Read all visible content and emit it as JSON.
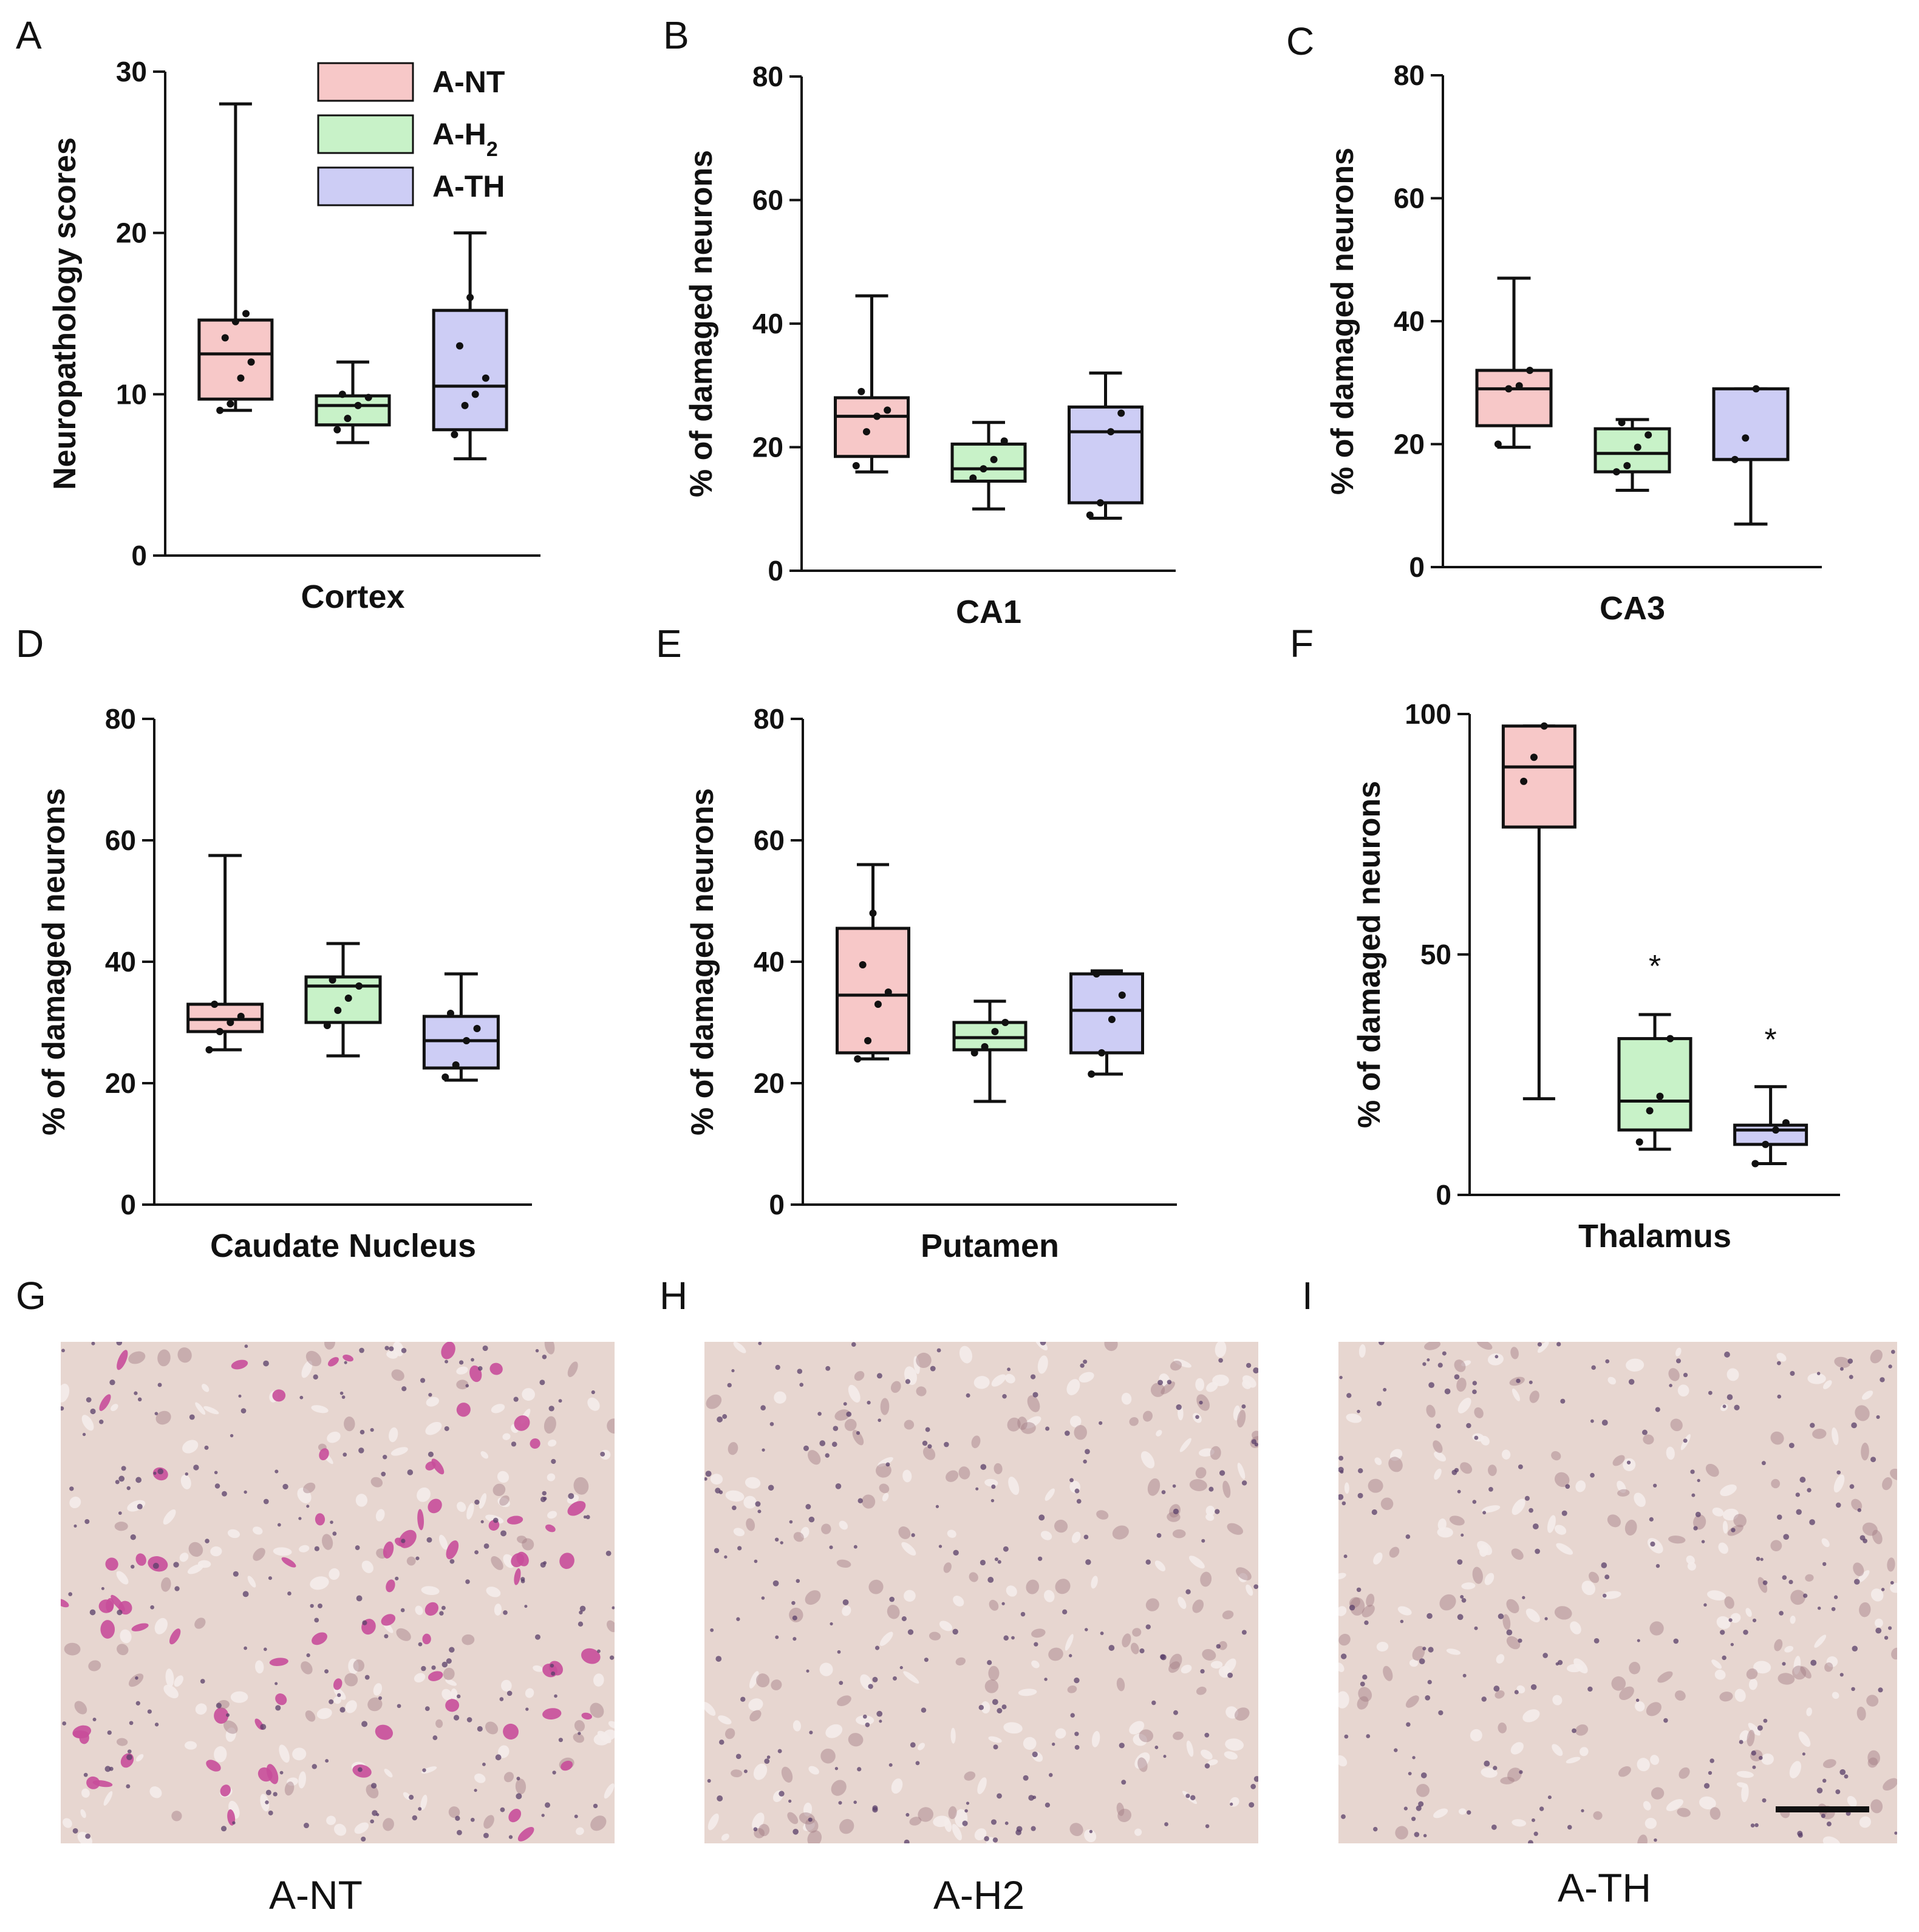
{
  "chart_data": [
    {
      "type": "box",
      "panel": "A",
      "region": "Cortex",
      "ylabel": "Neuropathology scores",
      "ylim": [
        0,
        30
      ],
      "yticks": [
        "0",
        "10",
        "20",
        "30"
      ],
      "groups": [
        {
          "name": "A-NT",
          "color": "#f7c8c8",
          "min": 9,
          "q1": 9.7,
          "median": 12.5,
          "q3": 14.6,
          "max": 28,
          "points": [
            9,
            9.4,
            11,
            12,
            13.5,
            14.5,
            15
          ]
        },
        {
          "name": "A-H2",
          "color": "#c8f2c8",
          "min": 7,
          "q1": 8.1,
          "median": 9.3,
          "q3": 9.9,
          "max": 12,
          "points": [
            7.8,
            8.5,
            9.3,
            9.8,
            10
          ]
        },
        {
          "name": "A-TH",
          "color": "#cdcdf5",
          "min": 6,
          "q1": 7.8,
          "median": 10.5,
          "q3": 15.2,
          "max": 20,
          "points": [
            7.5,
            9.3,
            10,
            11,
            13,
            16
          ]
        }
      ]
    },
    {
      "type": "box",
      "panel": "B",
      "region": "CA1",
      "ylabel": "% of damaged neurons",
      "ylim": [
        0,
        80
      ],
      "yticks": [
        "0",
        "20",
        "40",
        "60",
        "80"
      ],
      "groups": [
        {
          "name": "A-NT",
          "color": "#f7c8c8",
          "min": 16,
          "q1": 18.5,
          "median": 25,
          "q3": 28,
          "max": 44.5,
          "points": [
            17,
            22.5,
            25,
            26,
            29
          ]
        },
        {
          "name": "A-H2",
          "color": "#c8f2c8",
          "min": 10,
          "q1": 14.5,
          "median": 16.5,
          "q3": 20.5,
          "max": 24,
          "points": [
            15,
            16.5,
            18,
            21
          ]
        },
        {
          "name": "A-TH",
          "color": "#cdcdf5",
          "min": 8.5,
          "q1": 11,
          "median": 22.5,
          "q3": 26.5,
          "max": 32,
          "points": [
            9,
            11,
            22.5,
            25.5
          ]
        }
      ]
    },
    {
      "type": "box",
      "panel": "C",
      "region": "CA3",
      "ylabel": "% of damaged neurons",
      "ylim": [
        0,
        80
      ],
      "yticks": [
        "0",
        "20",
        "40",
        "60",
        "80"
      ],
      "groups": [
        {
          "name": "A-NT",
          "color": "#f7c8c8",
          "min": 19.5,
          "q1": 23,
          "median": 29,
          "q3": 32,
          "max": 47,
          "points": [
            20,
            29,
            29.5,
            32
          ]
        },
        {
          "name": "A-H2",
          "color": "#c8f2c8",
          "min": 12.5,
          "q1": 15.5,
          "median": 18.5,
          "q3": 22.5,
          "max": 24,
          "points": [
            15.5,
            16.5,
            19.5,
            21.5,
            23.5
          ]
        },
        {
          "name": "A-TH",
          "color": "#cdcdf5",
          "min": 7,
          "q1": 17.5,
          "median": 17.5,
          "q3": 29,
          "max": 29,
          "points": [
            17.5,
            21,
            29
          ]
        }
      ]
    },
    {
      "type": "box",
      "panel": "D",
      "region": "Caudate Nucleus",
      "ylabel": "% of damaged neurons",
      "ylim": [
        0,
        80
      ],
      "yticks": [
        "0",
        "20",
        "40",
        "60",
        "80"
      ],
      "groups": [
        {
          "name": "A-NT",
          "color": "#f7c8c8",
          "min": 25.5,
          "q1": 28.5,
          "median": 30.5,
          "q3": 33,
          "max": 57.5,
          "points": [
            25.5,
            28.5,
            30,
            31,
            33
          ]
        },
        {
          "name": "A-H2",
          "color": "#c8f2c8",
          "min": 24.5,
          "q1": 30,
          "median": 36,
          "q3": 37.5,
          "max": 43,
          "points": [
            29.5,
            32,
            34,
            36,
            37
          ]
        },
        {
          "name": "A-TH",
          "color": "#cdcdf5",
          "min": 20.5,
          "q1": 22.5,
          "median": 27,
          "q3": 31,
          "max": 38,
          "points": [
            21,
            23,
            27,
            29,
            31.5
          ]
        }
      ]
    },
    {
      "type": "box",
      "panel": "E",
      "region": "Putamen",
      "ylabel": "% of damaged neurons",
      "ylim": [
        0,
        80
      ],
      "yticks": [
        "0",
        "20",
        "40",
        "60",
        "80"
      ],
      "groups": [
        {
          "name": "A-NT",
          "color": "#f7c8c8",
          "min": 24,
          "q1": 25,
          "median": 34.5,
          "q3": 45.5,
          "max": 56,
          "points": [
            24,
            27,
            33,
            35,
            39.5,
            48
          ]
        },
        {
          "name": "A-H2",
          "color": "#c8f2c8",
          "min": 17,
          "q1": 25.5,
          "median": 27.5,
          "q3": 30,
          "max": 33.5,
          "points": [
            25,
            26,
            28.5,
            30
          ]
        },
        {
          "name": "A-TH",
          "color": "#cdcdf5",
          "min": 21.5,
          "q1": 25,
          "median": 32,
          "q3": 38,
          "max": 38.5,
          "points": [
            21.5,
            25,
            30.5,
            34.5,
            38
          ]
        }
      ]
    },
    {
      "type": "box",
      "panel": "F",
      "region": "Thalamus",
      "ylabel": "% of damaged neurons",
      "ylim": [
        0,
        100
      ],
      "yticks": [
        "0",
        "50",
        "100"
      ],
      "groups": [
        {
          "name": "A-NT",
          "color": "#f7c8c8",
          "min": 20,
          "q1": 76.5,
          "median": 89,
          "q3": 97.5,
          "max": 97.5,
          "points": [
            86,
            91,
            97.5
          ]
        },
        {
          "name": "A-H2",
          "color": "#c8f2c8",
          "min": 9.5,
          "q1": 13.5,
          "median": 19.5,
          "q3": 32.5,
          "max": 37.5,
          "points": [
            11,
            17.5,
            20.5,
            32.5
          ],
          "sig": "*"
        },
        {
          "name": "A-TH",
          "color": "#cdcdf5",
          "min": 6.5,
          "q1": 10.5,
          "median": 13.5,
          "q3": 14.5,
          "max": 22.5,
          "points": [
            6.5,
            10.5,
            13.5,
            15
          ]
        }
      ]
    }
  ],
  "legend": {
    "items": [
      {
        "label": "A-NT",
        "color": "#f7c8c8"
      },
      {
        "label": "A-H",
        "sub": "2",
        "color": "#c8f2c8"
      },
      {
        "label": "A-TH",
        "color": "#cdcdf5"
      }
    ]
  },
  "micrographs": [
    {
      "panel": "G",
      "caption": "A-NT",
      "alt": "H&E stained brain tissue section, A-NT"
    },
    {
      "panel": "H",
      "caption": "A-H2",
      "alt": "H&E stained brain tissue section, A-H2"
    },
    {
      "panel": "I",
      "caption": "A-TH",
      "alt": "H&E stained brain tissue section, A-TH"
    }
  ],
  "significance_marker": "*",
  "colors": {
    "tissue_bg": "#e7d6d0",
    "nt_stain": "#c84e9a",
    "neutral_stain": "#a17c86",
    "nucleus": "#5a3f6a",
    "scale_bar": "#111111"
  }
}
